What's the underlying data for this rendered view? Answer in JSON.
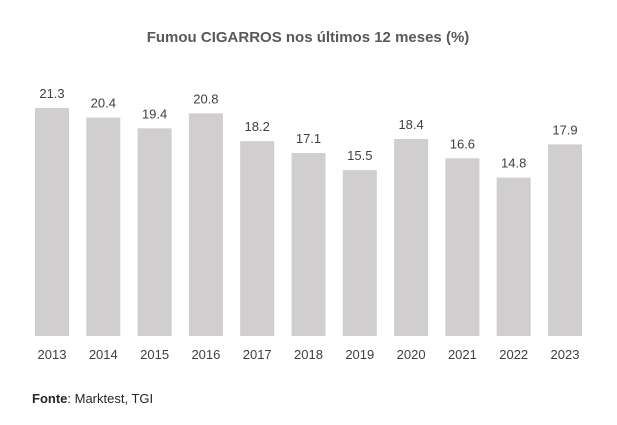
{
  "chart_data": {
    "type": "bar",
    "title": "Fumou CIGARROS nos últimos 12 meses (%)",
    "categories": [
      "2013",
      "2014",
      "2015",
      "2016",
      "2017",
      "2018",
      "2019",
      "2020",
      "2021",
      "2022",
      "2023"
    ],
    "values": [
      21.3,
      20.4,
      19.4,
      20.8,
      18.2,
      17.1,
      15.5,
      18.4,
      16.6,
      14.8,
      17.9
    ],
    "labels": [
      "21.3",
      "20.4",
      "19.4",
      "20.8",
      "18.2",
      "17.1",
      "15.5",
      "18.4",
      "16.6",
      "14.8",
      "17.9"
    ],
    "xlabel": "",
    "ylabel": "",
    "ylim": [
      0,
      21.3
    ],
    "grid": false,
    "bar_color": "#d0cece"
  },
  "source": {
    "label": "Fonte",
    "text": ": Marktest, TGI"
  }
}
